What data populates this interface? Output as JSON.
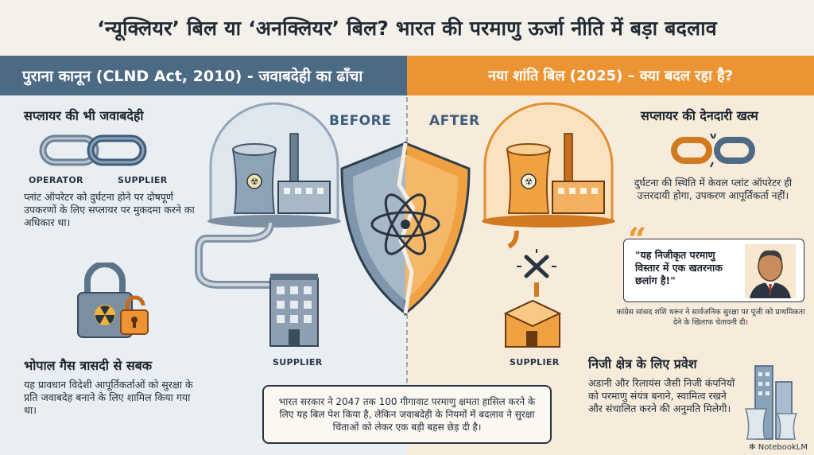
{
  "title": "‘न्यूक्लियर’ बिल या ‘अनक्लियर’ बिल? भारत की परमाणु ऊर्जा नीति में बड़ा बदलाव",
  "left_header": "पुराना कानून (CLND Act, 2010) - जवाबदेही का ढाँचा",
  "right_header": "नया शांति बिल (2025) – क्या बदल रहा है?",
  "before_label": "BEFORE",
  "after_label": "AFTER",
  "left": {
    "supplier_liability_title": "सप्लायर की भी जवाबदेही",
    "operator_label": "OPERATOR",
    "supplier_label": "SUPPLIER",
    "supplier_liability_text": "प्लांट ऑपरेटर को दुर्घटना होने पर दोषपूर्ण उपकरणों के लिए सप्लायर पर मुकदमा करने का अधिकार था।",
    "bhopal_title": "भोपाल गैस त्रासदी से सबक",
    "bhopal_text": "यह प्रावधान विदेशी आपूर्तिकर्ताओं को सुरक्षा के प्रति जवाबदेह बनाने के लिए शामिल किया गया था।",
    "building_label": "SUPPLIER"
  },
  "right": {
    "liability_end_title": "सप्लायर की देनदारी खत्म",
    "liability_end_text": "दुर्घटना की स्थिति में केवल प्लांट ऑपरेटर ही उत्तरदायी होगा, उपकरण आपूर्तिकर्ता नहीं।",
    "quote": "\"यह निजीकृत परमाणु विस्तार में एक खतरनाक छलांग है!\"",
    "quote_caption": "कांग्रेस सांसद शशि थरूर ने सार्वजनिक सुरक्षा पर पूंजी को प्राथमिकता देने के खिलाफ चेतावनी दी।",
    "building_label": "SUPPLIER",
    "private_title": "निजी क्षेत्र के लिए प्रवेश",
    "private_text": "अडानी और रिलायंस जैसी निजी कंपनियों को परमाणु संयंत्र बनाने, स्वामित्व रखने और संचालित करने की अनुमति मिलेगी।"
  },
  "bottom_note": "भारत सरकार ने 2047 तक 100 गीगावाट परमाणु क्षमता हासिल करने के लिए यह बिल पेश किया है, लेकिन जवाबदेही के नियमों में बदलाव ने सुरक्षा चिंताओं को लेकर एक बड़ी बहस छेड़ दी है।",
  "brand": "NotebookLM",
  "colors": {
    "left_band": "#4d6a85",
    "right_band": "#ec9434",
    "left_bg": "#e9eef3",
    "right_bg": "#f7ecdb"
  }
}
